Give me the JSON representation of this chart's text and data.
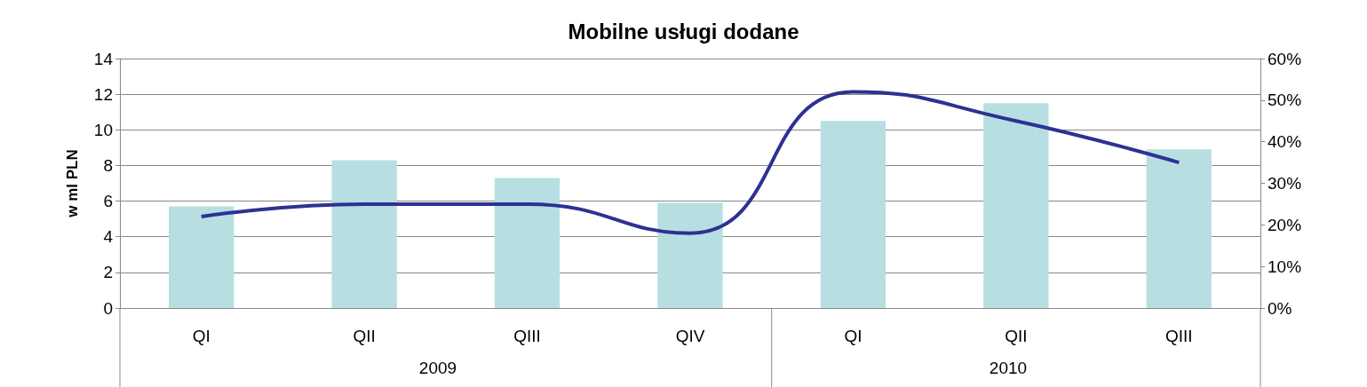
{
  "chart_data": {
    "type": "bar",
    "title": "Mobilne usługi dodane",
    "ylabel": "w ml PLN",
    "categories": [
      "QI",
      "QII",
      "QIII",
      "QIV",
      "QI",
      "QII",
      "QIII"
    ],
    "series": [
      {
        "color": "#b7dfe2",
        "values": [
          5.7,
          8.3,
          7.3,
          5.9,
          10.5,
          11.5,
          8.9
        ]
      },
      {
        "type": "line",
        "axis": "y2",
        "color": "#2e3192",
        "values": [
          22,
          25,
          25,
          18,
          52,
          45,
          35
        ]
      }
    ],
    "ylim": [
      0,
      14
    ],
    "yticks": [
      0,
      2,
      4,
      6,
      8,
      10,
      12,
      14
    ],
    "y2lim": [
      0,
      60
    ],
    "y2ticks": [
      {
        "value": 0,
        "label": "0%"
      },
      {
        "value": 10,
        "label": "10%"
      },
      {
        "value": 20,
        "label": "20%"
      },
      {
        "value": 30,
        "label": "30%"
      },
      {
        "value": 40,
        "label": "40%"
      },
      {
        "value": 50,
        "label": "50%"
      },
      {
        "value": 60,
        "label": "60%"
      }
    ],
    "annotations": [
      "2009",
      "2010"
    ],
    "grid": "y",
    "marker": "none",
    "line_style": "solid"
  }
}
